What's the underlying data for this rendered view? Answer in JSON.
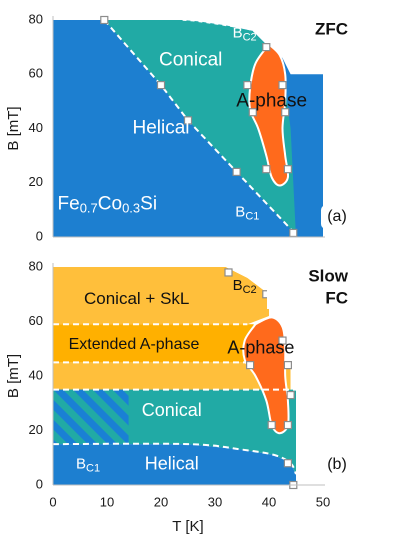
{
  "chart_data": [
    {
      "type": "phase-diagram",
      "panel_label": "(a)",
      "corner_label": [
        "ZFC"
      ],
      "xlim": [
        0,
        50
      ],
      "ylim": [
        0,
        80
      ],
      "x_ticks": [],
      "y_ticks": [
        "0",
        "20",
        "40",
        "60",
        "80"
      ],
      "ylabel": "B [mT]",
      "xlabel": "",
      "colors": {
        "helical": "#1d7fd0",
        "conical": "#21aaa5",
        "a_phase": "#ff6a1c",
        "marker_fill": "#ffffff",
        "marker_edge": "#8c8c8c",
        "boundary_dash": "#ffffff"
      },
      "regions": [
        {
          "key": "helical",
          "label": "Helical",
          "x": 20,
          "y": 40
        },
        {
          "key": "conical",
          "label": "Conical",
          "x": 25.5,
          "y": 65
        },
        {
          "key": "a_phase",
          "label": "A-phase",
          "x": 40.5,
          "y": 50
        }
      ],
      "compound": {
        "base": "Fe",
        "sub1": "0.7",
        "mid": "Co",
        "sub2": "0.3",
        "end": "Si",
        "x": 7.5,
        "y": 12
      },
      "boundary_labels": [
        {
          "base": "B",
          "sub": "C2",
          "x": 34,
          "y": 75
        },
        {
          "base": "B",
          "sub": "C1",
          "x": 34.5,
          "y": 9
        }
      ],
      "bc1_line": [
        [
          9.5,
          80
        ],
        [
          20,
          56
        ],
        [
          25,
          43
        ],
        [
          34,
          24
        ],
        [
          44,
          3
        ],
        [
          45,
          0
        ]
      ],
      "bc2_curve": [
        [
          24,
          80
        ],
        [
          27,
          79.5
        ],
        [
          32,
          78
        ],
        [
          37,
          76
        ],
        [
          40,
          70
        ]
      ],
      "a_phase_outline": [
        [
          40,
          71
        ],
        [
          42,
          67
        ],
        [
          43,
          60
        ],
        [
          43,
          50
        ],
        [
          42.5,
          40
        ],
        [
          43,
          30
        ],
        [
          43.5,
          22
        ],
        [
          42,
          19
        ],
        [
          40.5,
          22
        ],
        [
          39.5,
          30
        ],
        [
          38,
          40
        ],
        [
          36.5,
          47
        ],
        [
          36.5,
          55
        ],
        [
          37.5,
          64
        ],
        [
          40,
          71
        ]
      ],
      "markers": [
        [
          9.5,
          80
        ],
        [
          20,
          56
        ],
        [
          25,
          43
        ],
        [
          34,
          24
        ],
        [
          44.5,
          1.5
        ],
        [
          39.5,
          70
        ],
        [
          36,
          56
        ],
        [
          42.5,
          56
        ],
        [
          37,
          46
        ],
        [
          43,
          46
        ],
        [
          39.5,
          25
        ],
        [
          43.5,
          25
        ]
      ]
    },
    {
      "type": "phase-diagram",
      "panel_label": "(b)",
      "corner_label": [
        "Slow",
        "FC"
      ],
      "xlim": [
        0,
        50
      ],
      "ylim": [
        0,
        80
      ],
      "x_ticks": [
        "0",
        "10",
        "20",
        "30",
        "40",
        "50"
      ],
      "y_ticks": [
        "0",
        "20",
        "40",
        "60",
        "80"
      ],
      "ylabel": "B [mT]",
      "xlabel": "T [K]",
      "colors": {
        "helical": "#1d7fd0",
        "conical": "#21aaa5",
        "a_phase": "#ff6a1c",
        "skl": "#ffbf3b",
        "extended": "#ffb000",
        "hatch": "#1a80d4",
        "marker_fill": "#ffffff",
        "marker_edge": "#8c8c8c",
        "boundary_dash": "#ffffff"
      },
      "regions": [
        {
          "key": "skl",
          "label": "Conical + SkL",
          "x": 15.5,
          "y": 68
        },
        {
          "key": "extended",
          "label": "Extended A-phase",
          "x": 15,
          "y": 51.5
        },
        {
          "key": "conical",
          "label": "Conical",
          "x": 22,
          "y": 27
        },
        {
          "key": "helical",
          "label": "Helical",
          "x": 22,
          "y": 7.5
        },
        {
          "key": "a_phase",
          "label": "A-phase",
          "x": 38.5,
          "y": 50
        }
      ],
      "boundary_labels": [
        {
          "base": "B",
          "sub": "C2",
          "x": 34,
          "y": 73
        },
        {
          "base": "B",
          "sub": "C1",
          "x": 5,
          "y": 7.5
        }
      ],
      "dashed_lines": [
        {
          "y": 59,
          "x_end": 36
        },
        {
          "y": 45,
          "x_end": 36
        },
        {
          "y": 35,
          "x_end": 45
        },
        {
          "bc1": [
            [
              0,
              15
            ],
            [
              25,
              15
            ],
            [
              35,
              13
            ],
            [
              41,
              11
            ],
            [
              44,
              8
            ],
            [
              45,
              4
            ]
          ]
        }
      ],
      "hatch_region": {
        "x0": 0,
        "x1": 14,
        "y0": 15,
        "y1": 35
      },
      "a_phase_outline": [
        [
          37.5,
          59
        ],
        [
          40.5,
          61.5
        ],
        [
          42.5,
          58
        ],
        [
          43,
          50
        ],
        [
          43,
          40
        ],
        [
          43.5,
          31
        ],
        [
          43.5,
          22
        ],
        [
          42,
          19
        ],
        [
          40.5,
          22
        ],
        [
          39.5,
          31
        ],
        [
          37.5,
          40
        ],
        [
          35.5,
          46
        ],
        [
          35.5,
          53
        ],
        [
          37.5,
          59
        ]
      ],
      "markers": [
        [
          32.5,
          78
        ],
        [
          39.5,
          70
        ],
        [
          42.5,
          53
        ],
        [
          36.5,
          44
        ],
        [
          43.5,
          44
        ],
        [
          44,
          33
        ],
        [
          43.5,
          22
        ],
        [
          40.5,
          22
        ],
        [
          43.5,
          8
        ],
        [
          44.5,
          0
        ]
      ]
    }
  ]
}
